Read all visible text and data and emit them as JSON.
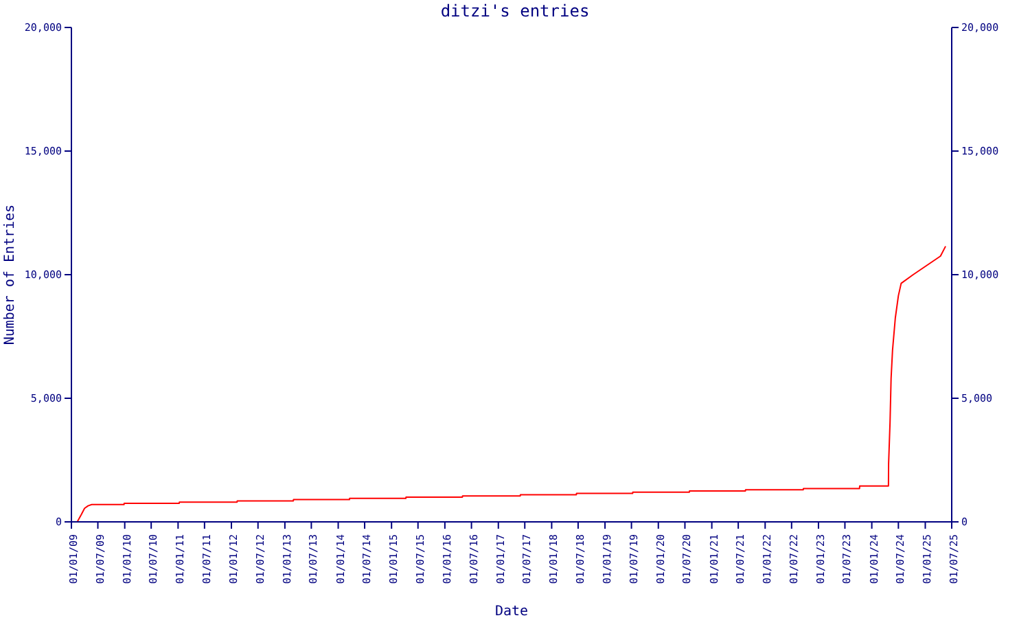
{
  "chart_data": {
    "type": "line",
    "title": "ditzi's entries",
    "xlabel": "Date",
    "ylabel": "Number of Entries",
    "x": [
      "2009-02-10",
      "2009-03-10",
      "2009-04-01",
      "2009-04-25",
      "2009-05-20",
      "2009-12-27",
      "2009-12-28",
      "2011-01-09",
      "2011-01-10",
      "2012-02-09",
      "2012-02-10",
      "2013-02-28",
      "2013-03-01",
      "2014-03-19",
      "2014-03-20",
      "2015-04-09",
      "2015-04-10",
      "2016-04-30",
      "2016-05-01",
      "2017-05-31",
      "2017-06-01",
      "2018-06-19",
      "2018-06-20",
      "2019-07-09",
      "2019-07-10",
      "2020-07-31",
      "2020-08-01",
      "2021-08-19",
      "2021-08-20",
      "2022-09-19",
      "2022-09-20",
      "2023-10-09",
      "2023-10-10",
      "2024-04-24",
      "2024-04-25",
      "2024-05-05",
      "2024-05-12",
      "2024-05-22",
      "2024-06-10",
      "2024-07-01",
      "2024-07-20",
      "2024-10-10",
      "2025-04-15",
      "2025-05-20"
    ],
    "series": [
      {
        "color": "#ff0000",
        "values": [
          0,
          300,
          550,
          650,
          700,
          700,
          750,
          750,
          800,
          800,
          850,
          850,
          900,
          900,
          950,
          950,
          1000,
          1000,
          1050,
          1050,
          1100,
          1100,
          1150,
          1150,
          1200,
          1200,
          1250,
          1250,
          1300,
          1300,
          1350,
          1350,
          1450,
          1450,
          2350,
          4050,
          5800,
          6950,
          8250,
          9150,
          9650,
          10000,
          10750,
          11150
        ]
      }
    ],
    "xlim": [
      "2009-01-01",
      "2025-07-01"
    ],
    "xticks": [
      {
        "value": "2009-01-01",
        "label": "01/01/09"
      },
      {
        "value": "2009-07-01",
        "label": "01/07/09"
      },
      {
        "value": "2010-01-01",
        "label": "01/01/10"
      },
      {
        "value": "2010-07-01",
        "label": "01/07/10"
      },
      {
        "value": "2011-01-01",
        "label": "01/01/11"
      },
      {
        "value": "2011-07-01",
        "label": "01/07/11"
      },
      {
        "value": "2012-01-01",
        "label": "01/01/12"
      },
      {
        "value": "2012-07-01",
        "label": "01/07/12"
      },
      {
        "value": "2013-01-01",
        "label": "01/01/13"
      },
      {
        "value": "2013-07-01",
        "label": "01/07/13"
      },
      {
        "value": "2014-01-01",
        "label": "01/01/14"
      },
      {
        "value": "2014-07-01",
        "label": "01/07/14"
      },
      {
        "value": "2015-01-01",
        "label": "01/01/15"
      },
      {
        "value": "2015-07-01",
        "label": "01/07/15"
      },
      {
        "value": "2016-01-01",
        "label": "01/01/16"
      },
      {
        "value": "2016-07-01",
        "label": "01/07/16"
      },
      {
        "value": "2017-01-01",
        "label": "01/01/17"
      },
      {
        "value": "2017-07-01",
        "label": "01/07/17"
      },
      {
        "value": "2018-01-01",
        "label": "01/01/18"
      },
      {
        "value": "2018-07-01",
        "label": "01/07/18"
      },
      {
        "value": "2019-01-01",
        "label": "01/01/19"
      },
      {
        "value": "2019-07-01",
        "label": "01/07/19"
      },
      {
        "value": "2020-01-01",
        "label": "01/01/20"
      },
      {
        "value": "2020-07-01",
        "label": "01/07/20"
      },
      {
        "value": "2021-01-01",
        "label": "01/01/21"
      },
      {
        "value": "2021-07-01",
        "label": "01/07/21"
      },
      {
        "value": "2022-01-01",
        "label": "01/01/22"
      },
      {
        "value": "2022-07-01",
        "label": "01/07/22"
      },
      {
        "value": "2023-01-01",
        "label": "01/01/23"
      },
      {
        "value": "2023-07-01",
        "label": "01/07/23"
      },
      {
        "value": "2024-01-01",
        "label": "01/01/24"
      },
      {
        "value": "2024-07-01",
        "label": "01/07/24"
      },
      {
        "value": "2025-01-01",
        "label": "01/01/25"
      },
      {
        "value": "2025-07-01",
        "label": "01/07/25"
      }
    ],
    "ylim": [
      0,
      20000
    ],
    "yticks": [
      0,
      {
        "value": 5000,
        "label": "5,000"
      },
      {
        "value": 10000,
        "label": "10,000"
      },
      {
        "value": 15000,
        "label": "15,000"
      },
      {
        "value": 20000,
        "label": "20,000"
      }
    ],
    "y2lim": [
      0,
      20000
    ],
    "y2ticks": [
      0,
      {
        "value": 5000,
        "label": "5,000"
      },
      {
        "value": 10000,
        "label": "10,000"
      },
      {
        "value": 15000,
        "label": "15,000"
      },
      {
        "value": 20000,
        "label": "20,000"
      }
    ],
    "grid": false,
    "legend": false,
    "marker": "none",
    "line_style": "solid"
  }
}
